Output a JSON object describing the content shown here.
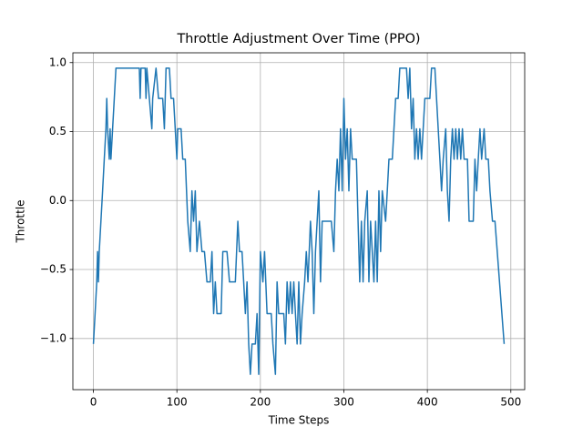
{
  "chart_data": {
    "type": "line",
    "title": "Throttle Adjustment Over Time (PPO)",
    "x_label": "Time Steps",
    "y_label": "Throttle",
    "x": [
      0,
      2,
      4,
      5,
      6,
      7,
      9,
      11,
      13,
      15,
      16,
      17,
      19,
      20,
      21,
      23,
      25,
      27,
      55,
      56,
      57,
      62,
      63,
      64,
      67,
      70,
      71,
      75,
      78,
      83,
      85,
      87,
      91,
      93,
      96,
      98,
      100,
      101,
      105,
      107,
      110,
      113,
      116,
      118,
      120,
      122,
      124,
      127,
      130,
      133,
      136,
      140,
      142,
      144,
      146,
      148,
      153,
      155,
      160,
      163,
      170,
      173,
      175,
      178,
      180,
      182,
      184,
      186,
      188,
      190,
      194,
      196,
      198,
      200,
      203,
      205,
      208,
      213,
      215,
      218,
      220,
      222,
      228,
      230,
      232,
      234,
      236,
      238,
      240,
      242,
      244,
      246,
      248,
      250,
      253,
      255,
      257,
      260,
      262,
      264,
      266,
      268,
      270,
      272,
      274,
      285,
      288,
      290,
      292,
      294,
      296,
      298,
      300,
      302,
      304,
      306,
      308,
      310,
      315,
      317,
      319,
      321,
      323,
      325,
      328,
      330,
      332,
      334,
      336,
      338,
      340,
      342,
      344,
      346,
      350,
      352,
      354,
      358,
      360,
      362,
      365,
      367,
      375,
      377,
      379,
      381,
      383,
      385,
      387,
      389,
      391,
      393,
      395,
      397,
      403,
      405,
      409,
      411,
      413,
      415,
      417,
      419,
      422,
      424,
      426,
      428,
      430,
      432,
      434,
      436,
      438,
      440,
      442,
      444,
      448,
      450,
      455,
      457,
      459,
      461,
      463,
      465,
      468,
      470,
      473,
      475,
      478,
      481,
      492
    ],
    "series": [
      {
        "name": "Throttle",
        "color": "#1f77b4",
        "values": [
          -1.04,
          -0.82,
          -0.59,
          -0.37,
          -0.59,
          -0.37,
          -0.15,
          0.07,
          0.3,
          0.52,
          0.74,
          0.52,
          0.3,
          0.52,
          0.3,
          0.52,
          0.74,
          0.96,
          0.96,
          0.74,
          0.96,
          0.96,
          0.74,
          0.96,
          0.74,
          0.52,
          0.74,
          0.96,
          0.74,
          0.74,
          0.52,
          0.96,
          0.96,
          0.74,
          0.74,
          0.52,
          0.3,
          0.52,
          0.52,
          0.3,
          0.3,
          -0.15,
          -0.37,
          0.07,
          -0.15,
          0.07,
          -0.37,
          -0.15,
          -0.37,
          -0.37,
          -0.59,
          -0.59,
          -0.37,
          -0.82,
          -0.59,
          -0.82,
          -0.82,
          -0.37,
          -0.37,
          -0.59,
          -0.59,
          -0.15,
          -0.37,
          -0.37,
          -0.59,
          -0.82,
          -0.59,
          -1.04,
          -1.26,
          -1.04,
          -1.04,
          -0.82,
          -1.26,
          -0.37,
          -0.59,
          -0.37,
          -0.82,
          -0.82,
          -1.04,
          -1.26,
          -0.59,
          -0.82,
          -0.82,
          -1.04,
          -0.59,
          -0.82,
          -0.59,
          -0.82,
          -0.59,
          -0.82,
          -1.04,
          -0.59,
          -1.04,
          -0.82,
          -0.59,
          -0.37,
          -0.59,
          -0.15,
          -0.37,
          -0.82,
          -0.37,
          -0.15,
          0.07,
          -0.59,
          -0.15,
          -0.15,
          -0.37,
          0.07,
          0.3,
          0.07,
          0.52,
          0.07,
          0.74,
          0.3,
          0.52,
          0.07,
          0.52,
          0.3,
          0.3,
          -0.15,
          -0.59,
          -0.15,
          -0.59,
          -0.15,
          0.07,
          -0.59,
          -0.15,
          -0.37,
          -0.59,
          -0.15,
          -0.59,
          0.07,
          -0.37,
          0.07,
          -0.15,
          0.07,
          0.3,
          0.3,
          0.52,
          0.74,
          0.74,
          0.96,
          0.96,
          0.74,
          0.96,
          0.52,
          0.74,
          0.3,
          0.52,
          0.3,
          0.52,
          0.3,
          0.52,
          0.74,
          0.74,
          0.96,
          0.96,
          0.74,
          0.52,
          0.3,
          0.07,
          0.3,
          0.52,
          0.07,
          -0.15,
          0.3,
          0.52,
          0.3,
          0.52,
          0.3,
          0.52,
          0.3,
          0.52,
          0.3,
          0.3,
          -0.15,
          -0.15,
          0.3,
          0.07,
          0.3,
          0.52,
          0.3,
          0.52,
          0.3,
          0.3,
          0.07,
          -0.15,
          -0.15,
          -1.04
        ]
      }
    ],
    "xlim": [
      -24.6,
      516.6
    ],
    "ylim": [
      -1.371,
      1.071
    ],
    "xticks": [
      0,
      100,
      200,
      300,
      400,
      500
    ],
    "yticks": [
      {
        "value": -1.0,
        "label": "−1.0"
      },
      {
        "value": -0.5,
        "label": "−0.5"
      },
      {
        "value": 0.0,
        "label": "0.0"
      },
      {
        "value": 0.5,
        "label": "0.5"
      },
      {
        "value": 1.0,
        "label": "1.0"
      }
    ],
    "grid": true
  }
}
